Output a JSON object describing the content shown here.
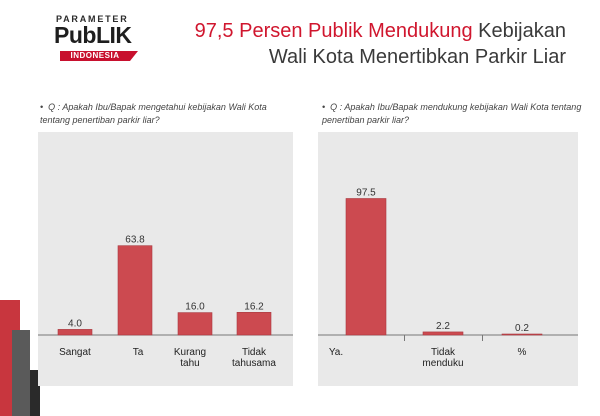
{
  "logo": {
    "top": "PARAMETER",
    "main": "PubLIK",
    "sub": "INDONESIA"
  },
  "title": {
    "highlight": "97,5 Persen Publik Mendukung",
    "rest1": " Kebijakan",
    "line2": "Wali Kota Menertibkan Parkir Liar"
  },
  "questions": {
    "left": "Q : Apakah Ibu/Bapak mengetahui kebijakan Wali Kota tentang penertiban parkir liar?",
    "right": "Q : Apakah Ibu/Bapak mendukung kebijakan Wali Kota tentang penertiban parkir liar?"
  },
  "chart_data": [
    {
      "type": "bar",
      "categories": [
        [
          "Sangat"
        ],
        [
          "Ta"
        ],
        [
          "Kurang",
          "tahu"
        ],
        [
          "Tidak",
          "tahusama"
        ]
      ],
      "values": [
        4.0,
        63.8,
        16.0,
        16.2
      ],
      "value_labels": [
        "4.0",
        "63.8",
        "16.0",
        "16.2"
      ],
      "ylim": [
        0,
        100
      ],
      "bar_color": "#cc4a50"
    },
    {
      "type": "bar",
      "categories": [
        [
          "Ya."
        ],
        [
          "Tidak",
          "menduku"
        ],
        [
          "%"
        ]
      ],
      "values": [
        97.5,
        2.2,
        0.2
      ],
      "value_labels": [
        "97.5",
        "2.2",
        "0.2"
      ],
      "ylim": [
        0,
        100
      ],
      "bar_color": "#cc4a50",
      "separators": true
    }
  ]
}
